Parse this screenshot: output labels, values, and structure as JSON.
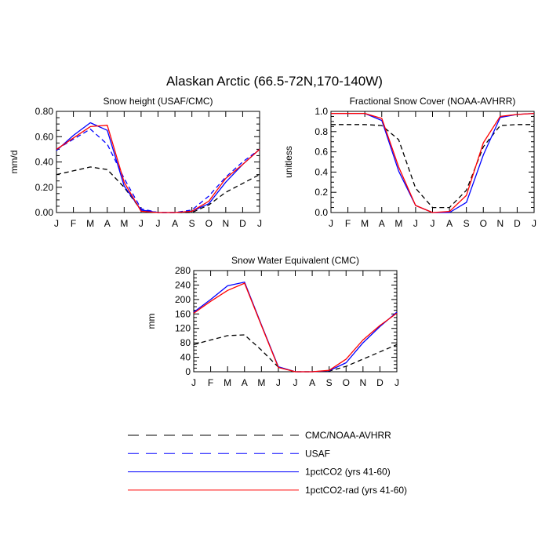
{
  "figure": {
    "title": "Alaskan Arctic (66.5-72N,170-140W)"
  },
  "colors": {
    "obs": "#000000",
    "usaf": "#0000ff",
    "pct": "#0000ff",
    "rad": "#ff0000"
  },
  "chart_data": [
    {
      "type": "line",
      "title": "Snow height (USAF/CMC)",
      "xlabel": "",
      "ylabel": "mm/d",
      "x": [
        "J",
        "F",
        "M",
        "A",
        "M",
        "J",
        "J",
        "A",
        "S",
        "O",
        "N",
        "D",
        "J"
      ],
      "ylim": [
        0,
        0.8
      ],
      "yticks": [
        "0.00",
        "0.20",
        "0.40",
        "0.60",
        "0.80"
      ],
      "series": [
        {
          "name": "CMC/NOAA-AVHRR",
          "style": "dashed",
          "color": "#000000",
          "values": [
            0.3,
            0.33,
            0.36,
            0.34,
            0.2,
            0.02,
            0.0,
            0.0,
            0.0,
            0.06,
            0.16,
            0.23,
            0.3
          ]
        },
        {
          "name": "USAF",
          "style": "dashed",
          "color": "#0000ff",
          "values": [
            0.5,
            0.58,
            0.66,
            0.54,
            0.27,
            0.03,
            0.0,
            0.0,
            0.02,
            0.13,
            0.28,
            0.4,
            0.5
          ]
        },
        {
          "name": "1pctCO2 (yrs 41-60)",
          "style": "solid",
          "color": "#0000ff",
          "values": [
            0.49,
            0.61,
            0.71,
            0.65,
            0.21,
            0.02,
            0.0,
            0.0,
            0.01,
            0.07,
            0.24,
            0.38,
            0.5
          ]
        },
        {
          "name": "1pctCO2-rad (yrs 41-60)",
          "style": "solid",
          "color": "#ff0000",
          "values": [
            0.5,
            0.59,
            0.68,
            0.69,
            0.24,
            0.01,
            0.0,
            0.0,
            0.01,
            0.09,
            0.27,
            0.38,
            0.5
          ]
        }
      ]
    },
    {
      "type": "line",
      "title": "Fractional Snow Cover (NOAA-AVHRR)",
      "xlabel": "",
      "ylabel": "unitless",
      "x": [
        "J",
        "F",
        "M",
        "A",
        "M",
        "J",
        "J",
        "A",
        "S",
        "O",
        "N",
        "D",
        "J"
      ],
      "ylim": [
        0,
        1.0
      ],
      "yticks": [
        "0.0",
        "0.2",
        "0.4",
        "0.6",
        "0.8",
        "1.0"
      ],
      "series": [
        {
          "name": "CMC/NOAA-AVHRR",
          "style": "dashed",
          "color": "#000000",
          "values": [
            0.87,
            0.87,
            0.87,
            0.86,
            0.72,
            0.24,
            0.05,
            0.05,
            0.22,
            0.65,
            0.86,
            0.87,
            0.87
          ]
        },
        {
          "name": "1pctCO2 (yrs 41-60)",
          "style": "solid",
          "color": "#0000ff",
          "values": [
            0.98,
            0.98,
            0.98,
            0.91,
            0.41,
            0.07,
            0.0,
            0.0,
            0.1,
            0.57,
            0.94,
            0.97,
            0.98
          ]
        },
        {
          "name": "1pctCO2-rad (yrs 41-60)",
          "style": "solid",
          "color": "#ff0000",
          "values": [
            0.98,
            0.98,
            0.98,
            0.93,
            0.45,
            0.07,
            0.0,
            0.01,
            0.17,
            0.69,
            0.95,
            0.97,
            0.98
          ]
        }
      ]
    },
    {
      "type": "line",
      "title": "Snow Water Equivalent (CMC)",
      "xlabel": "",
      "ylabel": "mm",
      "x": [
        "J",
        "F",
        "M",
        "A",
        "M",
        "J",
        "J",
        "A",
        "S",
        "O",
        "N",
        "D",
        "J"
      ],
      "ylim": [
        0,
        280
      ],
      "yticks": [
        "0",
        "40",
        "80",
        "120",
        "160",
        "200",
        "240",
        "280"
      ],
      "series": [
        {
          "name": "CMC/NOAA-AVHRR",
          "style": "dashed",
          "color": "#000000",
          "values": [
            75,
            88,
            100,
            102,
            60,
            13,
            0,
            0,
            2,
            15,
            35,
            55,
            75
          ]
        },
        {
          "name": "1pctCO2 (yrs 41-60)",
          "style": "solid",
          "color": "#0000ff",
          "values": [
            165,
            200,
            238,
            248,
            130,
            14,
            0,
            0,
            3,
            25,
            80,
            125,
            165
          ]
        },
        {
          "name": "1pctCO2-rad (yrs 41-60)",
          "style": "solid",
          "color": "#ff0000",
          "values": [
            162,
            195,
            225,
            245,
            128,
            12,
            0,
            0,
            4,
            35,
            88,
            128,
            162
          ]
        }
      ]
    }
  ],
  "legend": [
    {
      "label": "CMC/NOAA-AVHRR",
      "style": "dashed",
      "color": "#000000"
    },
    {
      "label": "USAF",
      "style": "dashed",
      "color": "#0000ff"
    },
    {
      "label": "1pctCO2 (yrs 41-60)",
      "style": "solid",
      "color": "#0000ff"
    },
    {
      "label": "1pctCO2-rad (yrs 41-60)",
      "style": "solid",
      "color": "#ff0000"
    }
  ]
}
